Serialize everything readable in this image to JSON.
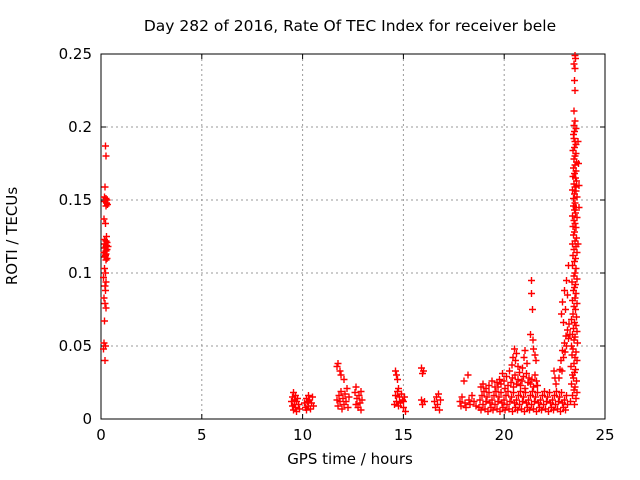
{
  "chart_data": {
    "type": "scatter",
    "title": "Day 282 of 2016, Rate Of TEC Index for receiver bele",
    "xlabel": "GPS time / hours",
    "ylabel": "ROTI / TECUs",
    "xlim": [
      0,
      25
    ],
    "ylim": [
      0,
      0.25
    ],
    "xticks": [
      0,
      5,
      10,
      15,
      20,
      25
    ],
    "xtick_labels": [
      "0",
      "5",
      "10",
      "15",
      "20",
      "25"
    ],
    "yticks": [
      0,
      0.05,
      0.1,
      0.15,
      0.2,
      0.25
    ],
    "ytick_labels": [
      "0",
      "0.05",
      "0.1",
      "0.15",
      "0.2",
      "0.25"
    ],
    "grid": true,
    "legend": "none",
    "marker": "plus",
    "marker_color": "#ff0000",
    "grid_color": "#9a9a9a",
    "axis_color": "#000000",
    "points": [
      [
        0.22,
        0.187
      ],
      [
        0.25,
        0.18
      ],
      [
        0.2,
        0.159
      ],
      [
        0.18,
        0.152
      ],
      [
        0.24,
        0.151
      ],
      [
        0.3,
        0.15
      ],
      [
        0.21,
        0.149
      ],
      [
        0.27,
        0.148
      ],
      [
        0.33,
        0.147
      ],
      [
        0.24,
        0.146
      ],
      [
        0.15,
        0.137
      ],
      [
        0.22,
        0.134
      ],
      [
        0.28,
        0.125
      ],
      [
        0.18,
        0.123
      ],
      [
        0.24,
        0.122
      ],
      [
        0.31,
        0.121
      ],
      [
        0.21,
        0.12
      ],
      [
        0.27,
        0.119
      ],
      [
        0.24,
        0.118
      ],
      [
        0.35,
        0.118
      ],
      [
        0.19,
        0.117
      ],
      [
        0.29,
        0.116
      ],
      [
        0.24,
        0.115
      ],
      [
        0.16,
        0.114
      ],
      [
        0.26,
        0.113
      ],
      [
        0.23,
        0.112
      ],
      [
        0.2,
        0.111
      ],
      [
        0.3,
        0.11
      ],
      [
        0.25,
        0.109
      ],
      [
        0.17,
        0.103
      ],
      [
        0.22,
        0.1
      ],
      [
        0.13,
        0.097
      ],
      [
        0.26,
        0.094
      ],
      [
        0.19,
        0.091
      ],
      [
        0.23,
        0.088
      ],
      [
        0.14,
        0.083
      ],
      [
        0.2,
        0.079
      ],
      [
        0.24,
        0.076
      ],
      [
        0.18,
        0.067
      ],
      [
        0.16,
        0.052
      ],
      [
        0.22,
        0.05
      ],
      [
        0.12,
        0.048
      ],
      [
        0.19,
        0.04
      ],
      [
        9.45,
        0.012
      ],
      [
        9.5,
        0.015
      ],
      [
        9.5,
        0.009
      ],
      [
        9.55,
        0.018
      ],
      [
        9.55,
        0.006
      ],
      [
        9.6,
        0.013
      ],
      [
        9.6,
        0.01
      ],
      [
        9.65,
        0.016
      ],
      [
        9.65,
        0.008
      ],
      [
        9.7,
        0.012
      ],
      [
        9.7,
        0.005
      ],
      [
        9.75,
        0.014
      ],
      [
        9.8,
        0.01
      ],
      [
        9.85,
        0.007
      ],
      [
        10.1,
        0.011
      ],
      [
        10.15,
        0.008
      ],
      [
        10.2,
        0.014
      ],
      [
        10.2,
        0.006
      ],
      [
        10.25,
        0.012
      ],
      [
        10.3,
        0.016
      ],
      [
        10.3,
        0.009
      ],
      [
        10.35,
        0.013
      ],
      [
        10.4,
        0.007
      ],
      [
        10.45,
        0.011
      ],
      [
        10.5,
        0.015
      ],
      [
        10.55,
        0.009
      ],
      [
        11.7,
        0.036
      ],
      [
        11.75,
        0.038
      ],
      [
        11.85,
        0.033
      ],
      [
        11.9,
        0.03
      ],
      [
        12.05,
        0.027
      ],
      [
        11.7,
        0.013
      ],
      [
        11.75,
        0.009
      ],
      [
        11.8,
        0.016
      ],
      [
        11.85,
        0.012
      ],
      [
        11.9,
        0.019
      ],
      [
        11.95,
        0.007
      ],
      [
        12.0,
        0.014
      ],
      [
        12.05,
        0.01
      ],
      [
        12.1,
        0.017
      ],
      [
        12.15,
        0.012
      ],
      [
        12.2,
        0.021
      ],
      [
        12.25,
        0.008
      ],
      [
        12.3,
        0.015
      ],
      [
        12.6,
        0.018
      ],
      [
        12.65,
        0.022
      ],
      [
        12.65,
        0.01
      ],
      [
        12.7,
        0.014
      ],
      [
        12.75,
        0.008
      ],
      [
        12.8,
        0.016
      ],
      [
        12.85,
        0.011
      ],
      [
        12.9,
        0.019
      ],
      [
        12.9,
        0.006
      ],
      [
        12.95,
        0.013
      ],
      [
        14.6,
        0.033
      ],
      [
        14.65,
        0.03
      ],
      [
        14.7,
        0.027
      ],
      [
        14.6,
        0.016
      ],
      [
        14.65,
        0.012
      ],
      [
        14.7,
        0.019
      ],
      [
        14.75,
        0.009
      ],
      [
        14.8,
        0.015
      ],
      [
        14.85,
        0.011
      ],
      [
        14.9,
        0.017
      ],
      [
        14.95,
        0.013
      ],
      [
        15.0,
        0.008
      ],
      [
        15.05,
        0.015
      ],
      [
        15.1,
        0.005
      ],
      [
        14.55,
        0.01
      ],
      [
        14.75,
        0.021
      ],
      [
        15.0,
        0.012
      ],
      [
        15.9,
        0.035
      ],
      [
        15.95,
        0.031
      ],
      [
        16.0,
        0.033
      ],
      [
        15.9,
        0.013
      ],
      [
        15.95,
        0.01
      ],
      [
        16.05,
        0.012
      ],
      [
        16.55,
        0.012
      ],
      [
        16.6,
        0.008
      ],
      [
        16.65,
        0.015
      ],
      [
        16.7,
        0.01
      ],
      [
        16.75,
        0.017
      ],
      [
        16.8,
        0.006
      ],
      [
        16.85,
        0.013
      ],
      [
        17.8,
        0.012
      ],
      [
        17.85,
        0.009
      ],
      [
        17.9,
        0.015
      ],
      [
        18.0,
        0.026
      ],
      [
        18.05,
        0.011
      ],
      [
        18.1,
        0.008
      ],
      [
        18.2,
        0.03
      ],
      [
        18.25,
        0.013
      ],
      [
        18.3,
        0.01
      ],
      [
        18.4,
        0.016
      ],
      [
        18.5,
        0.012
      ],
      [
        18.6,
        0.009
      ],
      [
        18.75,
        0.008
      ],
      [
        18.8,
        0.013
      ],
      [
        18.85,
        0.006
      ],
      [
        18.9,
        0.016
      ],
      [
        18.95,
        0.01
      ],
      [
        19.0,
        0.019
      ],
      [
        19.05,
        0.007
      ],
      [
        19.1,
        0.012
      ],
      [
        19.15,
        0.015
      ],
      [
        19.2,
        0.005
      ],
      [
        19.25,
        0.018
      ],
      [
        19.3,
        0.011
      ],
      [
        19.35,
        0.008
      ],
      [
        19.4,
        0.013
      ],
      [
        19.45,
        0.006
      ],
      [
        19.5,
        0.016
      ],
      [
        19.55,
        0.01
      ],
      [
        19.6,
        0.019
      ],
      [
        19.65,
        0.007
      ],
      [
        19.7,
        0.012
      ],
      [
        19.75,
        0.015
      ],
      [
        19.8,
        0.005
      ],
      [
        19.85,
        0.018
      ],
      [
        19.9,
        0.011
      ],
      [
        19.95,
        0.008
      ],
      [
        20.0,
        0.013
      ],
      [
        20.05,
        0.006
      ],
      [
        20.1,
        0.016
      ],
      [
        20.15,
        0.01
      ],
      [
        20.2,
        0.019
      ],
      [
        20.25,
        0.007
      ],
      [
        20.3,
        0.012
      ],
      [
        20.35,
        0.015
      ],
      [
        20.4,
        0.005
      ],
      [
        20.45,
        0.018
      ],
      [
        20.5,
        0.011
      ],
      [
        20.55,
        0.008
      ],
      [
        20.6,
        0.013
      ],
      [
        20.65,
        0.006
      ],
      [
        20.7,
        0.016
      ],
      [
        20.75,
        0.01
      ],
      [
        20.8,
        0.019
      ],
      [
        20.85,
        0.007
      ],
      [
        20.9,
        0.012
      ],
      [
        20.95,
        0.015
      ],
      [
        21.0,
        0.005
      ],
      [
        21.05,
        0.018
      ],
      [
        21.1,
        0.011
      ],
      [
        21.15,
        0.008
      ],
      [
        21.2,
        0.013
      ],
      [
        21.25,
        0.006
      ],
      [
        21.3,
        0.016
      ],
      [
        21.35,
        0.01
      ],
      [
        21.4,
        0.019
      ],
      [
        21.45,
        0.007
      ],
      [
        21.5,
        0.012
      ],
      [
        21.55,
        0.015
      ],
      [
        21.6,
        0.005
      ],
      [
        21.65,
        0.018
      ],
      [
        21.7,
        0.011
      ],
      [
        21.75,
        0.008
      ],
      [
        21.8,
        0.013
      ],
      [
        21.85,
        0.006
      ],
      [
        21.9,
        0.016
      ],
      [
        21.95,
        0.01
      ],
      [
        22.0,
        0.019
      ],
      [
        22.05,
        0.007
      ],
      [
        22.1,
        0.012
      ],
      [
        22.15,
        0.015
      ],
      [
        22.2,
        0.005
      ],
      [
        22.25,
        0.018
      ],
      [
        22.3,
        0.011
      ],
      [
        22.35,
        0.008
      ],
      [
        22.4,
        0.013
      ],
      [
        22.45,
        0.006
      ],
      [
        22.5,
        0.016
      ],
      [
        22.55,
        0.01
      ],
      [
        22.6,
        0.019
      ],
      [
        22.65,
        0.007
      ],
      [
        22.7,
        0.012
      ],
      [
        22.75,
        0.015
      ],
      [
        22.8,
        0.005
      ],
      [
        22.85,
        0.018
      ],
      [
        22.9,
        0.011
      ],
      [
        22.95,
        0.008
      ],
      [
        23.0,
        0.013
      ],
      [
        23.05,
        0.006
      ],
      [
        23.1,
        0.016
      ],
      [
        23.15,
        0.01
      ],
      [
        19.7,
        0.022
      ],
      [
        19.77,
        0.027
      ],
      [
        19.84,
        0.024
      ],
      [
        19.91,
        0.031
      ],
      [
        19.98,
        0.026
      ],
      [
        20.05,
        0.021
      ],
      [
        20.12,
        0.029
      ],
      [
        20.19,
        0.023
      ],
      [
        20.26,
        0.033
      ],
      [
        20.33,
        0.025
      ],
      [
        20.4,
        0.028
      ],
      [
        20.47,
        0.022
      ],
      [
        20.54,
        0.03
      ],
      [
        20.61,
        0.024
      ],
      [
        20.68,
        0.027
      ],
      [
        20.75,
        0.032
      ],
      [
        20.82,
        0.023
      ],
      [
        20.89,
        0.026
      ],
      [
        20.96,
        0.029
      ],
      [
        21.03,
        0.021
      ],
      [
        21.1,
        0.031
      ],
      [
        21.17,
        0.025
      ],
      [
        21.24,
        0.028
      ],
      [
        21.31,
        0.024
      ],
      [
        21.38,
        0.027
      ],
      [
        21.45,
        0.022
      ],
      [
        21.52,
        0.03
      ],
      [
        21.59,
        0.026
      ],
      [
        21.66,
        0.023
      ],
      [
        18.85,
        0.022
      ],
      [
        18.95,
        0.024
      ],
      [
        19.1,
        0.021
      ],
      [
        19.25,
        0.023
      ],
      [
        19.4,
        0.026
      ],
      [
        19.55,
        0.022
      ],
      [
        19.65,
        0.025
      ],
      [
        20.38,
        0.037
      ],
      [
        20.44,
        0.042
      ],
      [
        20.5,
        0.048
      ],
      [
        20.56,
        0.04
      ],
      [
        20.62,
        0.045
      ],
      [
        20.68,
        0.036
      ],
      [
        20.92,
        0.035
      ],
      [
        20.98,
        0.042
      ],
      [
        21.04,
        0.047
      ],
      [
        21.12,
        0.038
      ],
      [
        21.3,
        0.058
      ],
      [
        21.35,
        0.095
      ],
      [
        21.36,
        0.086
      ],
      [
        21.4,
        0.075
      ],
      [
        21.42,
        0.054
      ],
      [
        21.46,
        0.048
      ],
      [
        21.52,
        0.044
      ],
      [
        21.58,
        0.04
      ],
      [
        22.48,
        0.033
      ],
      [
        22.52,
        0.028
      ],
      [
        22.56,
        0.024
      ],
      [
        22.85,
        0.072
      ],
      [
        22.9,
        0.08
      ],
      [
        22.95,
        0.066
      ],
      [
        23.0,
        0.088
      ],
      [
        23.05,
        0.075
      ],
      [
        23.1,
        0.095
      ],
      [
        23.15,
        0.085
      ],
      [
        23.2,
        0.105
      ],
      [
        22.72,
        0.028
      ],
      [
        22.78,
        0.034
      ],
      [
        22.82,
        0.04
      ],
      [
        22.86,
        0.033
      ],
      [
        22.9,
        0.047
      ],
      [
        22.94,
        0.042
      ],
      [
        22.98,
        0.052
      ],
      [
        23.02,
        0.046
      ],
      [
        23.06,
        0.057
      ],
      [
        23.1,
        0.05
      ],
      [
        23.14,
        0.061
      ],
      [
        23.18,
        0.055
      ],
      [
        23.22,
        0.065
      ],
      [
        23.26,
        0.058
      ],
      [
        23.5,
        0.249
      ],
      [
        23.53,
        0.247
      ],
      [
        23.47,
        0.243
      ],
      [
        23.5,
        0.24
      ],
      [
        23.49,
        0.232
      ],
      [
        23.51,
        0.225
      ],
      [
        23.47,
        0.211
      ],
      [
        23.52,
        0.204
      ],
      [
        23.46,
        0.201
      ],
      [
        23.55,
        0.199
      ],
      [
        23.49,
        0.197
      ],
      [
        23.43,
        0.195
      ],
      [
        23.45,
        0.192
      ],
      [
        23.52,
        0.19
      ],
      [
        23.57,
        0.188
      ],
      [
        23.48,
        0.186
      ],
      [
        23.42,
        0.184
      ],
      [
        23.55,
        0.182
      ],
      [
        23.5,
        0.18
      ],
      [
        23.46,
        0.178
      ],
      [
        23.59,
        0.176
      ],
      [
        23.52,
        0.174
      ],
      [
        23.44,
        0.172
      ],
      [
        23.56,
        0.17
      ],
      [
        23.48,
        0.168
      ],
      [
        23.42,
        0.166
      ],
      [
        23.53,
        0.165
      ],
      [
        23.58,
        0.163
      ],
      [
        23.46,
        0.161
      ],
      [
        23.51,
        0.159
      ],
      [
        23.4,
        0.157
      ],
      [
        23.55,
        0.156
      ],
      [
        23.49,
        0.154
      ],
      [
        23.61,
        0.152
      ],
      [
        23.44,
        0.151
      ],
      [
        23.5,
        0.148
      ],
      [
        23.43,
        0.146
      ],
      [
        23.57,
        0.145
      ],
      [
        23.48,
        0.143
      ],
      [
        23.53,
        0.141
      ],
      [
        23.39,
        0.139
      ],
      [
        23.6,
        0.138
      ],
      [
        23.46,
        0.136
      ],
      [
        23.52,
        0.134
      ],
      [
        23.41,
        0.132
      ],
      [
        23.56,
        0.131
      ],
      [
        23.49,
        0.128
      ],
      [
        23.44,
        0.126
      ],
      [
        23.58,
        0.124
      ],
      [
        23.51,
        0.122
      ],
      [
        23.38,
        0.12
      ],
      [
        23.55,
        0.118
      ],
      [
        23.47,
        0.116
      ],
      [
        23.62,
        0.114
      ],
      [
        23.42,
        0.112
      ],
      [
        23.53,
        0.11
      ],
      [
        23.48,
        0.108
      ],
      [
        23.4,
        0.105
      ],
      [
        23.57,
        0.103
      ],
      [
        23.51,
        0.1
      ],
      [
        23.45,
        0.098
      ],
      [
        23.6,
        0.096
      ],
      [
        23.37,
        0.094
      ],
      [
        23.54,
        0.092
      ],
      [
        23.49,
        0.09
      ],
      [
        23.43,
        0.088
      ],
      [
        23.56,
        0.086
      ],
      [
        23.5,
        0.083
      ],
      [
        23.38,
        0.081
      ],
      [
        23.62,
        0.079
      ],
      [
        23.46,
        0.077
      ],
      [
        23.53,
        0.075
      ],
      [
        23.41,
        0.072
      ],
      [
        23.58,
        0.07
      ],
      [
        23.35,
        0.068
      ],
      [
        23.49,
        0.066
      ],
      [
        23.55,
        0.064
      ],
      [
        23.44,
        0.062
      ],
      [
        23.6,
        0.06
      ],
      [
        23.39,
        0.058
      ],
      [
        23.52,
        0.056
      ],
      [
        23.47,
        0.054
      ],
      [
        23.64,
        0.052
      ],
      [
        23.33,
        0.05
      ],
      [
        23.42,
        0.048
      ],
      [
        23.56,
        0.046
      ],
      [
        23.36,
        0.044
      ],
      [
        23.5,
        0.042
      ],
      [
        23.61,
        0.04
      ],
      [
        23.45,
        0.038
      ],
      [
        23.31,
        0.036
      ],
      [
        23.54,
        0.034
      ],
      [
        23.48,
        0.032
      ],
      [
        23.38,
        0.03
      ],
      [
        23.43,
        0.028
      ],
      [
        23.58,
        0.026
      ],
      [
        23.35,
        0.024
      ],
      [
        23.51,
        0.022
      ],
      [
        23.46,
        0.02
      ],
      [
        23.62,
        0.018
      ],
      [
        23.4,
        0.016
      ],
      [
        23.55,
        0.014
      ],
      [
        23.3,
        0.012
      ],
      [
        23.48,
        0.01
      ],
      [
        23.66,
        0.19
      ],
      [
        23.68,
        0.175
      ],
      [
        23.7,
        0.16
      ],
      [
        23.72,
        0.145
      ],
      [
        23.67,
        0.12
      ]
    ]
  }
}
